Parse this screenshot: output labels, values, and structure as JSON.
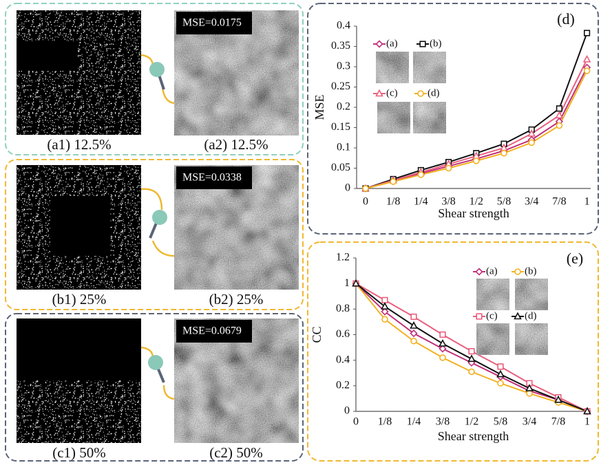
{
  "panels": [
    {
      "left_caption": "(a1) 12.5%",
      "right_caption": "(a2) 12.5%",
      "mse": "MSE=0.0175"
    },
    {
      "left_caption": "(b1) 25%",
      "right_caption": "(b2) 25%",
      "mse": "MSE=0.0338"
    },
    {
      "left_caption": "(c1) 50%",
      "right_caption": "(c2) 50%",
      "mse": "MSE=0.0679"
    }
  ],
  "chart_data": [
    {
      "type": "line",
      "title": "(d)",
      "x_label": "Shear strength",
      "y_label": "MSE",
      "categories": [
        "0",
        "1/8",
        "1/4",
        "3/8",
        "1/2",
        "5/8",
        "3/4",
        "7/8",
        "1"
      ],
      "ylim": [
        0,
        0.4
      ],
      "yticks": [
        0,
        0.05,
        0.1,
        0.15,
        0.2,
        0.25,
        0.3,
        0.35,
        0.4
      ],
      "series": [
        {
          "name": "(a)",
          "color": "#c0307a",
          "marker": "diamond",
          "values": [
            0,
            0.018,
            0.037,
            0.055,
            0.073,
            0.093,
            0.12,
            0.165,
            0.298
          ]
        },
        {
          "name": "(b)",
          "color": "#111111",
          "marker": "square",
          "values": [
            0,
            0.023,
            0.045,
            0.065,
            0.087,
            0.11,
            0.145,
            0.197,
            0.383
          ]
        },
        {
          "name": "(c)",
          "color": "#e8607e",
          "marker": "triangle",
          "values": [
            0,
            0.02,
            0.04,
            0.06,
            0.08,
            0.1,
            0.135,
            0.18,
            0.318
          ]
        },
        {
          "name": "(d)",
          "color": "#f2b120",
          "marker": "circle",
          "values": [
            0,
            0.017,
            0.034,
            0.05,
            0.068,
            0.087,
            0.113,
            0.155,
            0.29
          ]
        }
      ]
    },
    {
      "type": "line",
      "title": "(e)",
      "x_label": "Shear strength",
      "y_label": "CC",
      "categories": [
        "0",
        "1/8",
        "1/4",
        "3/8",
        "1/2",
        "5/8",
        "3/4",
        "7/8",
        "1"
      ],
      "ylim": [
        0,
        1.2
      ],
      "yticks": [
        0,
        0.2,
        0.4,
        0.6,
        0.8,
        1,
        1.2
      ],
      "series": [
        {
          "name": "(a)",
          "color": "#c0307a",
          "marker": "diamond",
          "values": [
            1,
            0.78,
            0.61,
            0.49,
            0.38,
            0.27,
            0.16,
            0.09,
            0
          ]
        },
        {
          "name": "(b)",
          "color": "#f2b120",
          "marker": "circle",
          "values": [
            1,
            0.72,
            0.55,
            0.42,
            0.31,
            0.22,
            0.14,
            0.07,
            0
          ]
        },
        {
          "name": "(c)",
          "color": "#e8607e",
          "marker": "square",
          "values": [
            1,
            0.87,
            0.74,
            0.6,
            0.47,
            0.35,
            0.22,
            0.11,
            0
          ]
        },
        {
          "name": "(d)",
          "color": "#111111",
          "marker": "triangle",
          "values": [
            1,
            0.82,
            0.67,
            0.53,
            0.41,
            0.29,
            0.18,
            0.09,
            0
          ]
        }
      ]
    }
  ]
}
